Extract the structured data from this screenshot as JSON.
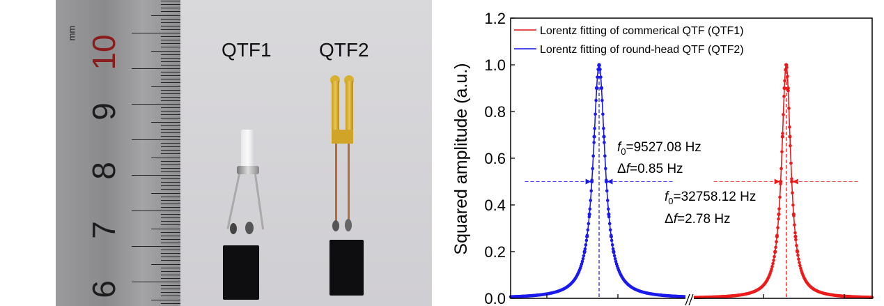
{
  "photo": {
    "labels": [
      "QTF1",
      "QTF2"
    ],
    "ruler": {
      "unit": "mm",
      "numbers": [
        "10",
        "9",
        "8",
        "7",
        "6"
      ],
      "highlight_color": "#8b1c1c"
    }
  },
  "chart_data": {
    "type": "scatter",
    "title": "",
    "xlabel": "",
    "ylabel": "Squared amplitude (a.u.)",
    "ylim": [
      0,
      1.2
    ],
    "yticks": [
      "0.0",
      "0.2",
      "0.4",
      "0.6",
      "0.8",
      "1.0",
      "1.2"
    ],
    "x_axis_break": true,
    "grid": false,
    "legend_position": "top-left",
    "legend": [
      {
        "label": "Lorentz fitting of commerical QTF (QTF1)",
        "color": "#e01010"
      },
      {
        "label": "Lorentz fitting of round-head QTF (QTF2)",
        "color": "#1010e0"
      }
    ],
    "series": [
      {
        "name": "Lorentz fitting of round-head QTF (QTF2)",
        "color": "#1a1aee",
        "f0": 9527.08,
        "fwhm": 0.85,
        "xlim": [
          9521.9,
          9532.3
        ],
        "peak": 1.0,
        "half_max": 0.5
      },
      {
        "name": "Lorentz fitting of commerical QTF (QTF1)",
        "color": "#ee1a1a",
        "f0": 32758.12,
        "fwhm": 2.78,
        "xlim": [
          32734.5,
          32779.6
        ],
        "peak": 1.0,
        "half_max": 0.5
      }
    ],
    "annotations": {
      "qtf2": {
        "f0_prefix": "f",
        "f0_sub": "0",
        "f0_text": "=9527.08 Hz",
        "df_prefix": "Δ",
        "df_italic": "f",
        "df_text": "=0.85 Hz"
      },
      "qtf1": {
        "f0_prefix": "f",
        "f0_sub": "0",
        "f0_text": "=32758.12 Hz",
        "df_prefix": "Δ",
        "df_italic": "f",
        "df_text": "=2.78 Hz"
      }
    }
  }
}
